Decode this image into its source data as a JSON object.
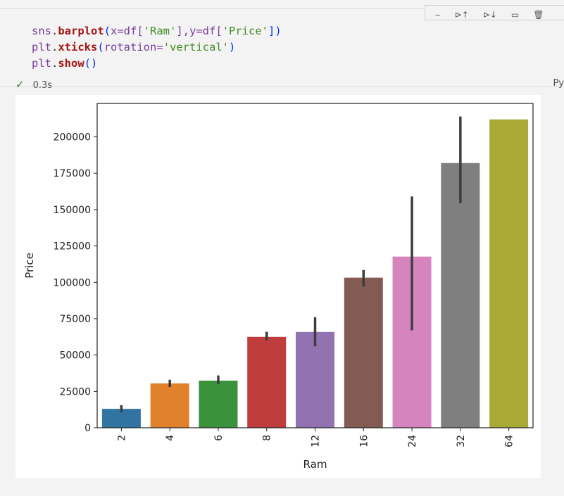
{
  "cell": {
    "code_lines": [
      [
        {
          "t": "sns",
          "c": "#7a3e9d"
        },
        {
          "t": ".",
          "c": "#333"
        },
        {
          "t": "barplot",
          "c": "#a31515",
          "b": true
        },
        {
          "t": "(",
          "c": "#0431fa"
        },
        {
          "t": "x=df[",
          "c": "#7a3e9d"
        },
        {
          "t": "'Ram'",
          "c": "#448c27"
        },
        {
          "t": "],y=df[",
          "c": "#7a3e9d"
        },
        {
          "t": "'Price'",
          "c": "#448c27"
        },
        {
          "t": "])",
          "c": "#0431fa"
        }
      ],
      [
        {
          "t": "plt",
          "c": "#7a3e9d"
        },
        {
          "t": ".",
          "c": "#333"
        },
        {
          "t": "xticks",
          "c": "#a31515",
          "b": true
        },
        {
          "t": "(",
          "c": "#0431fa"
        },
        {
          "t": "rotation=",
          "c": "#7a3e9d"
        },
        {
          "t": "'vertical'",
          "c": "#448c27"
        },
        {
          "t": ")",
          "c": "#0431fa"
        }
      ],
      [
        {
          "t": "plt",
          "c": "#7a3e9d"
        },
        {
          "t": ".",
          "c": "#333"
        },
        {
          "t": "show",
          "c": "#a31515",
          "b": true
        },
        {
          "t": "()",
          "c": "#0431fa"
        }
      ]
    ],
    "status_icon": "check-icon",
    "duration": "0.3s",
    "language": "Py"
  },
  "chart_data": {
    "type": "bar",
    "xlabel": "Ram",
    "ylabel": "Price",
    "categories": [
      "2",
      "4",
      "6",
      "8",
      "12",
      "16",
      "24",
      "32",
      "64"
    ],
    "values": [
      13000,
      30500,
      32400,
      62500,
      65900,
      103200,
      117700,
      182000,
      212000
    ],
    "error_low": [
      10600,
      28000,
      30000,
      60000,
      56000,
      97000,
      67000,
      154500,
      null
    ],
    "error_high": [
      15500,
      33000,
      36000,
      66000,
      76000,
      108500,
      159000,
      214000,
      null
    ],
    "colors": [
      "#3274a1",
      "#e1812c",
      "#3a923a",
      "#c03d3e",
      "#9372b2",
      "#845b53",
      "#d684bd",
      "#7f7f7f",
      "#a9aa35"
    ],
    "yticks": [
      0,
      25000,
      50000,
      75000,
      100000,
      125000,
      150000,
      175000,
      200000
    ],
    "ylim": [
      0,
      223000
    ],
    "xtick_rotation": "vertical",
    "grid": false,
    "legend": "none"
  }
}
